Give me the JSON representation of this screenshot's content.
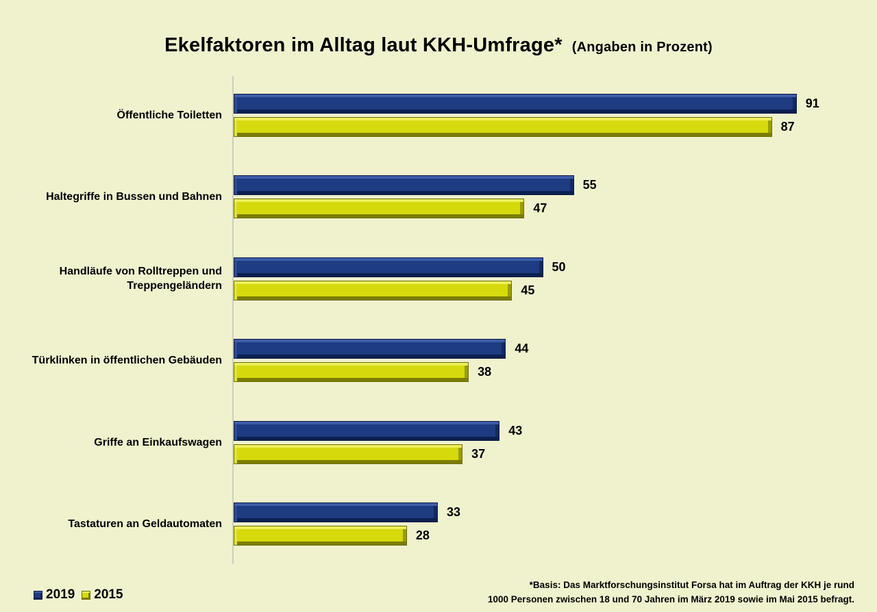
{
  "title": {
    "main": "Ekelfaktoren im Alltag laut KKH-Umfrage*",
    "sub": "(Angaben in Prozent)"
  },
  "legend": [
    {
      "label": "2019",
      "color": "#1e3c82"
    },
    {
      "label": "2015",
      "color": "#d6da0c"
    }
  ],
  "footnote": {
    "line1": "*Basis: Das Marktforschungsinstitut Forsa hat im Auftrag der KKH je rund",
    "line2": "1000 Personen zwischen 18 und 70 Jahren im März 2019 sowie im Mai 2015 befragt."
  },
  "chart_data": {
    "type": "bar",
    "orientation": "horizontal",
    "title": "Ekelfaktoren im Alltag laut KKH-Umfrage* (Angaben in Prozent)",
    "categories": [
      "Öffentliche Toiletten",
      "Haltegriffe in Bussen und Bahnen",
      "Handläufe von Rolltreppen und Treppengeländern",
      "Türklinken in öffentlichen Gebäuden",
      "Griffe an Einkaufswagen",
      "Tastaturen an Geldautomaten"
    ],
    "series": [
      {
        "name": "2019",
        "color": "#1e3c82",
        "values": [
          91,
          55,
          50,
          44,
          43,
          33
        ]
      },
      {
        "name": "2015",
        "color": "#d6da0c",
        "values": [
          87,
          47,
          45,
          38,
          37,
          28
        ]
      }
    ],
    "xlim": [
      0,
      100
    ],
    "value_labels": true,
    "grid": false,
    "legend_position": "bottom-left",
    "background_color": "#f0f2ce"
  }
}
